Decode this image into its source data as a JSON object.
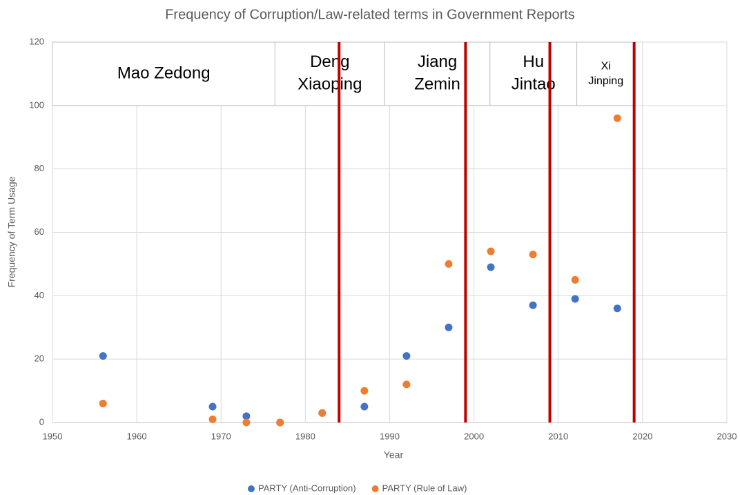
{
  "chart_data": {
    "type": "scatter",
    "title": "Frequency of Corruption/Law-related terms in Government Reports",
    "x_label": "Year",
    "y_label": "Frequency of Term Usage",
    "x": [
      1956,
      1969,
      1973,
      1977,
      1982,
      1987,
      1992,
      1997,
      2002,
      2007,
      2012,
      2017
    ],
    "series": [
      {
        "name": "PARTY (Anti-Corruption)",
        "color": "#4472c4",
        "values": [
          21,
          5,
          2,
          0,
          3,
          5,
          21,
          30,
          49,
          37,
          39,
          36
        ]
      },
      {
        "name": "PARTY (Rule of Law)",
        "color": "#ed7d31",
        "values": [
          6,
          1,
          0,
          0,
          3,
          10,
          12,
          50,
          54,
          53,
          45,
          96
        ]
      }
    ],
    "xlim": [
      1950,
      2030
    ],
    "xticks": [
      1950,
      1960,
      1970,
      1980,
      1990,
      2000,
      2010,
      2020,
      2030
    ],
    "ylim": [
      0,
      120
    ],
    "yticks": [
      0,
      20,
      40,
      60,
      80,
      100,
      120
    ],
    "grid": true,
    "legend": "bottom",
    "eras": [
      {
        "label": [
          "Mao Zedong"
        ],
        "start": 1950,
        "end": 1976.4
      },
      {
        "label": [
          "Deng",
          "Xiaoping"
        ],
        "start": 1976.4,
        "end": 1989.4
      },
      {
        "label": [
          "Jiang",
          "Zemin"
        ],
        "start": 1989.4,
        "end": 2001.9
      },
      {
        "label": [
          "Hu",
          "Jintao"
        ],
        "start": 2001.9,
        "end": 2012.2
      },
      {
        "label": [
          "Xi",
          "Jinping"
        ],
        "start": 2012.2,
        "end": 2019.1
      }
    ],
    "era_band": [
      100,
      120
    ],
    "dividers": [
      1984,
      1999,
      2009,
      2019
    ],
    "divider_color": "#c00000"
  }
}
